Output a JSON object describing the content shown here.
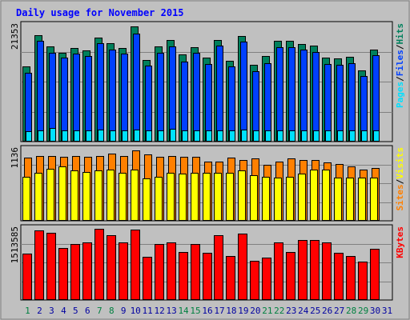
{
  "title": "Daily usage for November 2015",
  "colors": {
    "background": "#c0c0c0",
    "title": "#0000ff",
    "weekday_label": "#0000a0",
    "weekend_label": "#008040",
    "hits": "#00805c",
    "files": "#0040ff",
    "pages": "#00e0ff",
    "visits": "#ffff00",
    "sites": "#ff8000",
    "kbytes": "#ff0000"
  },
  "chart_data": [
    {
      "type": "bar",
      "categories": [
        "1",
        "2",
        "3",
        "4",
        "5",
        "6",
        "7",
        "8",
        "9",
        "10",
        "11",
        "12",
        "13",
        "14",
        "15",
        "16",
        "17",
        "18",
        "19",
        "20",
        "21",
        "22",
        "23",
        "24",
        "25",
        "26",
        "27",
        "28",
        "29",
        "30",
        "31"
      ],
      "weekend_days": [
        "1",
        "7",
        "8",
        "14",
        "15",
        "21",
        "22",
        "28",
        "29"
      ],
      "ylim": [
        0,
        21353
      ],
      "max_label": "21353",
      "series": [
        {
          "name": "Hits",
          "values": [
            14000,
            19700,
            17600,
            16500,
            17300,
            16900,
            19300,
            18200,
            17400,
            21300,
            15100,
            17600,
            18800,
            16100,
            17500,
            15600,
            18900,
            15000,
            19500,
            14300,
            15800,
            18700,
            18700,
            18100,
            17800,
            15600,
            15400,
            15700,
            13200,
            17000,
            0
          ]
        },
        {
          "name": "Files",
          "values": [
            12700,
            18700,
            16400,
            15600,
            16300,
            15900,
            18300,
            17000,
            16300,
            20000,
            14100,
            16400,
            17700,
            14900,
            16400,
            14400,
            17800,
            13900,
            18500,
            13100,
            14500,
            17500,
            17500,
            17000,
            16600,
            14400,
            14200,
            14500,
            12200,
            16000,
            0
          ]
        },
        {
          "name": "Pages",
          "values": [
            1950,
            2100,
            2450,
            2050,
            2100,
            2150,
            2250,
            2050,
            2050,
            2250,
            2050,
            2050,
            2400,
            2050,
            2150,
            2050,
            2100,
            2050,
            2250,
            2100,
            2050,
            2100,
            2100,
            2050,
            2050,
            2150,
            2050,
            2050,
            2050,
            2050,
            0
          ]
        }
      ],
      "axis_label_parts": [
        "Pages",
        "Files",
        "Hits"
      ]
    },
    {
      "type": "bar",
      "categories": [
        "1",
        "2",
        "3",
        "4",
        "5",
        "6",
        "7",
        "8",
        "9",
        "10",
        "11",
        "12",
        "13",
        "14",
        "15",
        "16",
        "17",
        "18",
        "19",
        "20",
        "21",
        "22",
        "23",
        "24",
        "25",
        "26",
        "27",
        "28",
        "29",
        "30",
        "31"
      ],
      "ylim": [
        0,
        1136
      ],
      "max_label": "1136",
      "series": [
        {
          "name": "Sites",
          "values": [
            1017,
            1049,
            1049,
            1033,
            1049,
            1033,
            1049,
            1081,
            1049,
            1136,
            1065,
            1033,
            1049,
            1033,
            1033,
            953,
            953,
            1017,
            985,
            1001,
            905,
            953,
            1001,
            985,
            985,
            937,
            921,
            873,
            825,
            857,
            0
          ]
        },
        {
          "name": "Visits",
          "values": [
            714,
            778,
            841,
            873,
            810,
            793,
            810,
            825,
            778,
            825,
            683,
            714,
            778,
            762,
            778,
            778,
            778,
            778,
            810,
            730,
            714,
            698,
            714,
            762,
            825,
            825,
            698,
            698,
            698,
            698,
            0
          ]
        }
      ],
      "axis_label_parts": [
        "Sites",
        "Visits"
      ]
    },
    {
      "type": "bar",
      "categories": [
        "1",
        "2",
        "3",
        "4",
        "5",
        "6",
        "7",
        "8",
        "9",
        "10",
        "11",
        "12",
        "13",
        "14",
        "15",
        "16",
        "17",
        "18",
        "19",
        "20",
        "21",
        "22",
        "23",
        "24",
        "25",
        "26",
        "27",
        "28",
        "29",
        "30",
        "31"
      ],
      "ylim": [
        0,
        1513585
      ],
      "max_label": "1513585",
      "series": [
        {
          "name": "KBytes",
          "values": [
            999000,
            1504000,
            1449000,
            1122000,
            1204000,
            1231000,
            1526000,
            1395000,
            1231000,
            1513585,
            922000,
            1204000,
            1231000,
            1040000,
            1204000,
            1013000,
            1395000,
            945000,
            1436000,
            845000,
            904000,
            1231000,
            1040000,
            1286000,
            1286000,
            1231000,
            1013000,
            945000,
            822000,
            1095000,
            0
          ]
        }
      ],
      "axis_label_parts": [
        "KBytes"
      ]
    }
  ]
}
